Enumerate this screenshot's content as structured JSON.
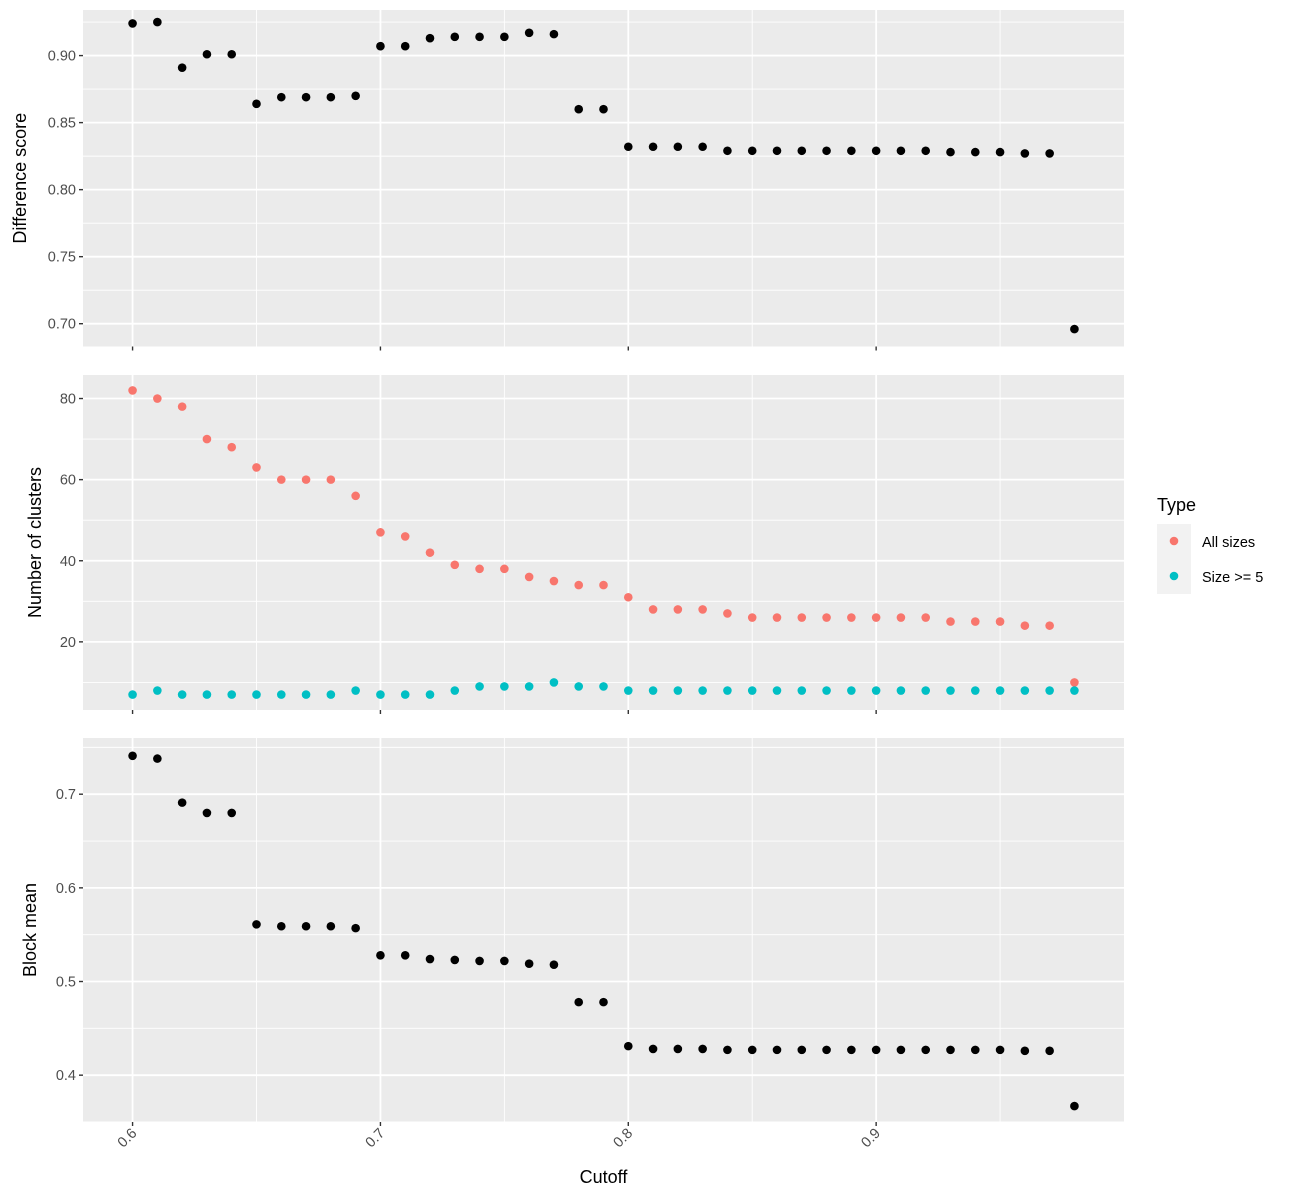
{
  "chart_data": [
    {
      "type": "scatter",
      "panel": "top",
      "title": "",
      "xlabel": "",
      "ylabel": "Difference score",
      "xlim": [
        0.58,
        1.0
      ],
      "ylim": [
        0.683,
        0.934
      ],
      "grid": true,
      "x_ticks": [
        0.6,
        0.7,
        0.8,
        0.9
      ],
      "x_tick_labels_visible": false,
      "y_ticks": [
        0.7,
        0.75,
        0.8,
        0.85,
        0.9
      ],
      "y_tick_labels": [
        "0.70",
        "0.75",
        "0.80",
        "0.85",
        "0.90"
      ],
      "series": [
        {
          "name": "Difference score",
          "color": "#000000",
          "x": [
            0.6,
            0.61,
            0.62,
            0.63,
            0.64,
            0.65,
            0.66,
            0.67,
            0.68,
            0.69,
            0.7,
            0.71,
            0.72,
            0.73,
            0.74,
            0.75,
            0.76,
            0.77,
            0.78,
            0.79,
            0.8,
            0.81,
            0.82,
            0.83,
            0.84,
            0.85,
            0.86,
            0.87,
            0.88,
            0.89,
            0.9,
            0.91,
            0.92,
            0.93,
            0.94,
            0.95,
            0.96,
            0.97,
            0.98
          ],
          "y": [
            0.924,
            0.925,
            0.891,
            0.901,
            0.901,
            0.864,
            0.869,
            0.869,
            0.869,
            0.87,
            0.907,
            0.907,
            0.913,
            0.914,
            0.914,
            0.914,
            0.917,
            0.916,
            0.86,
            0.86,
            0.832,
            0.832,
            0.832,
            0.832,
            0.829,
            0.829,
            0.829,
            0.829,
            0.829,
            0.829,
            0.829,
            0.829,
            0.829,
            0.828,
            0.828,
            0.828,
            0.827,
            0.827,
            0.696
          ]
        }
      ]
    },
    {
      "type": "scatter",
      "panel": "middle",
      "title": "",
      "xlabel": "",
      "ylabel": "Number of clusters",
      "xlim": [
        0.58,
        1.0
      ],
      "ylim": [
        3.2,
        85.8
      ],
      "grid": true,
      "x_ticks": [
        0.6,
        0.7,
        0.8,
        0.9
      ],
      "x_tick_labels_visible": false,
      "y_ticks": [
        20,
        40,
        60,
        80
      ],
      "y_tick_labels": [
        "20",
        "40",
        "60",
        "80"
      ],
      "legend": {
        "title": "Type",
        "position": "right",
        "entries": [
          {
            "label": "All sizes",
            "color": "#F8766D"
          },
          {
            "label": "Size >= 5",
            "color": "#00BFC4"
          }
        ]
      },
      "series": [
        {
          "name": "All sizes",
          "color": "#F8766D",
          "x": [
            0.6,
            0.61,
            0.62,
            0.63,
            0.64,
            0.65,
            0.66,
            0.67,
            0.68,
            0.69,
            0.7,
            0.71,
            0.72,
            0.73,
            0.74,
            0.75,
            0.76,
            0.77,
            0.78,
            0.79,
            0.8,
            0.81,
            0.82,
            0.83,
            0.84,
            0.85,
            0.86,
            0.87,
            0.88,
            0.89,
            0.9,
            0.91,
            0.92,
            0.93,
            0.94,
            0.95,
            0.96,
            0.97,
            0.98
          ],
          "y": [
            82,
            80,
            78,
            70,
            68,
            63,
            60,
            60,
            60,
            56,
            47,
            46,
            42,
            39,
            38,
            38,
            36,
            35,
            34,
            34,
            31,
            28,
            28,
            28,
            27,
            26,
            26,
            26,
            26,
            26,
            26,
            26,
            26,
            25,
            25,
            25,
            24,
            24,
            10
          ]
        },
        {
          "name": "Size >= 5",
          "color": "#00BFC4",
          "x": [
            0.6,
            0.61,
            0.62,
            0.63,
            0.64,
            0.65,
            0.66,
            0.67,
            0.68,
            0.69,
            0.7,
            0.71,
            0.72,
            0.73,
            0.74,
            0.75,
            0.76,
            0.77,
            0.78,
            0.79,
            0.8,
            0.81,
            0.82,
            0.83,
            0.84,
            0.85,
            0.86,
            0.87,
            0.88,
            0.89,
            0.9,
            0.91,
            0.92,
            0.93,
            0.94,
            0.95,
            0.96,
            0.97,
            0.98
          ],
          "y": [
            7,
            8,
            7,
            7,
            7,
            7,
            7,
            7,
            7,
            8,
            7,
            7,
            7,
            8,
            9,
            9,
            9,
            10,
            9,
            9,
            8,
            8,
            8,
            8,
            8,
            8,
            8,
            8,
            8,
            8,
            8,
            8,
            8,
            8,
            8,
            8,
            8,
            8,
            8
          ]
        }
      ]
    },
    {
      "type": "scatter",
      "panel": "bottom",
      "title": "",
      "xlabel": "Cutoff",
      "ylabel": "Block mean",
      "xlim": [
        0.58,
        1.0
      ],
      "ylim": [
        0.35,
        0.76
      ],
      "grid": true,
      "x_ticks": [
        0.6,
        0.7,
        0.8,
        0.9
      ],
      "x_tick_labels": [
        "0.6",
        "0.7",
        "0.8",
        "0.9"
      ],
      "x_tick_labels_visible": true,
      "y_ticks": [
        0.4,
        0.5,
        0.6,
        0.7
      ],
      "y_tick_labels": [
        "0.4",
        "0.5",
        "0.6",
        "0.7"
      ],
      "series": [
        {
          "name": "Block mean",
          "color": "#000000",
          "x": [
            0.6,
            0.61,
            0.62,
            0.63,
            0.64,
            0.65,
            0.66,
            0.67,
            0.68,
            0.69,
            0.7,
            0.71,
            0.72,
            0.73,
            0.74,
            0.75,
            0.76,
            0.77,
            0.78,
            0.79,
            0.8,
            0.81,
            0.82,
            0.83,
            0.84,
            0.85,
            0.86,
            0.87,
            0.88,
            0.89,
            0.9,
            0.91,
            0.92,
            0.93,
            0.94,
            0.95,
            0.96,
            0.97,
            0.98
          ],
          "y": [
            0.741,
            0.738,
            0.691,
            0.68,
            0.68,
            0.561,
            0.559,
            0.559,
            0.559,
            0.557,
            0.528,
            0.528,
            0.524,
            0.523,
            0.522,
            0.522,
            0.519,
            0.518,
            0.478,
            0.478,
            0.431,
            0.428,
            0.428,
            0.428,
            0.427,
            0.427,
            0.427,
            0.427,
            0.427,
            0.427,
            0.427,
            0.427,
            0.427,
            0.427,
            0.427,
            0.427,
            0.426,
            0.426,
            0.367
          ]
        }
      ]
    }
  ]
}
